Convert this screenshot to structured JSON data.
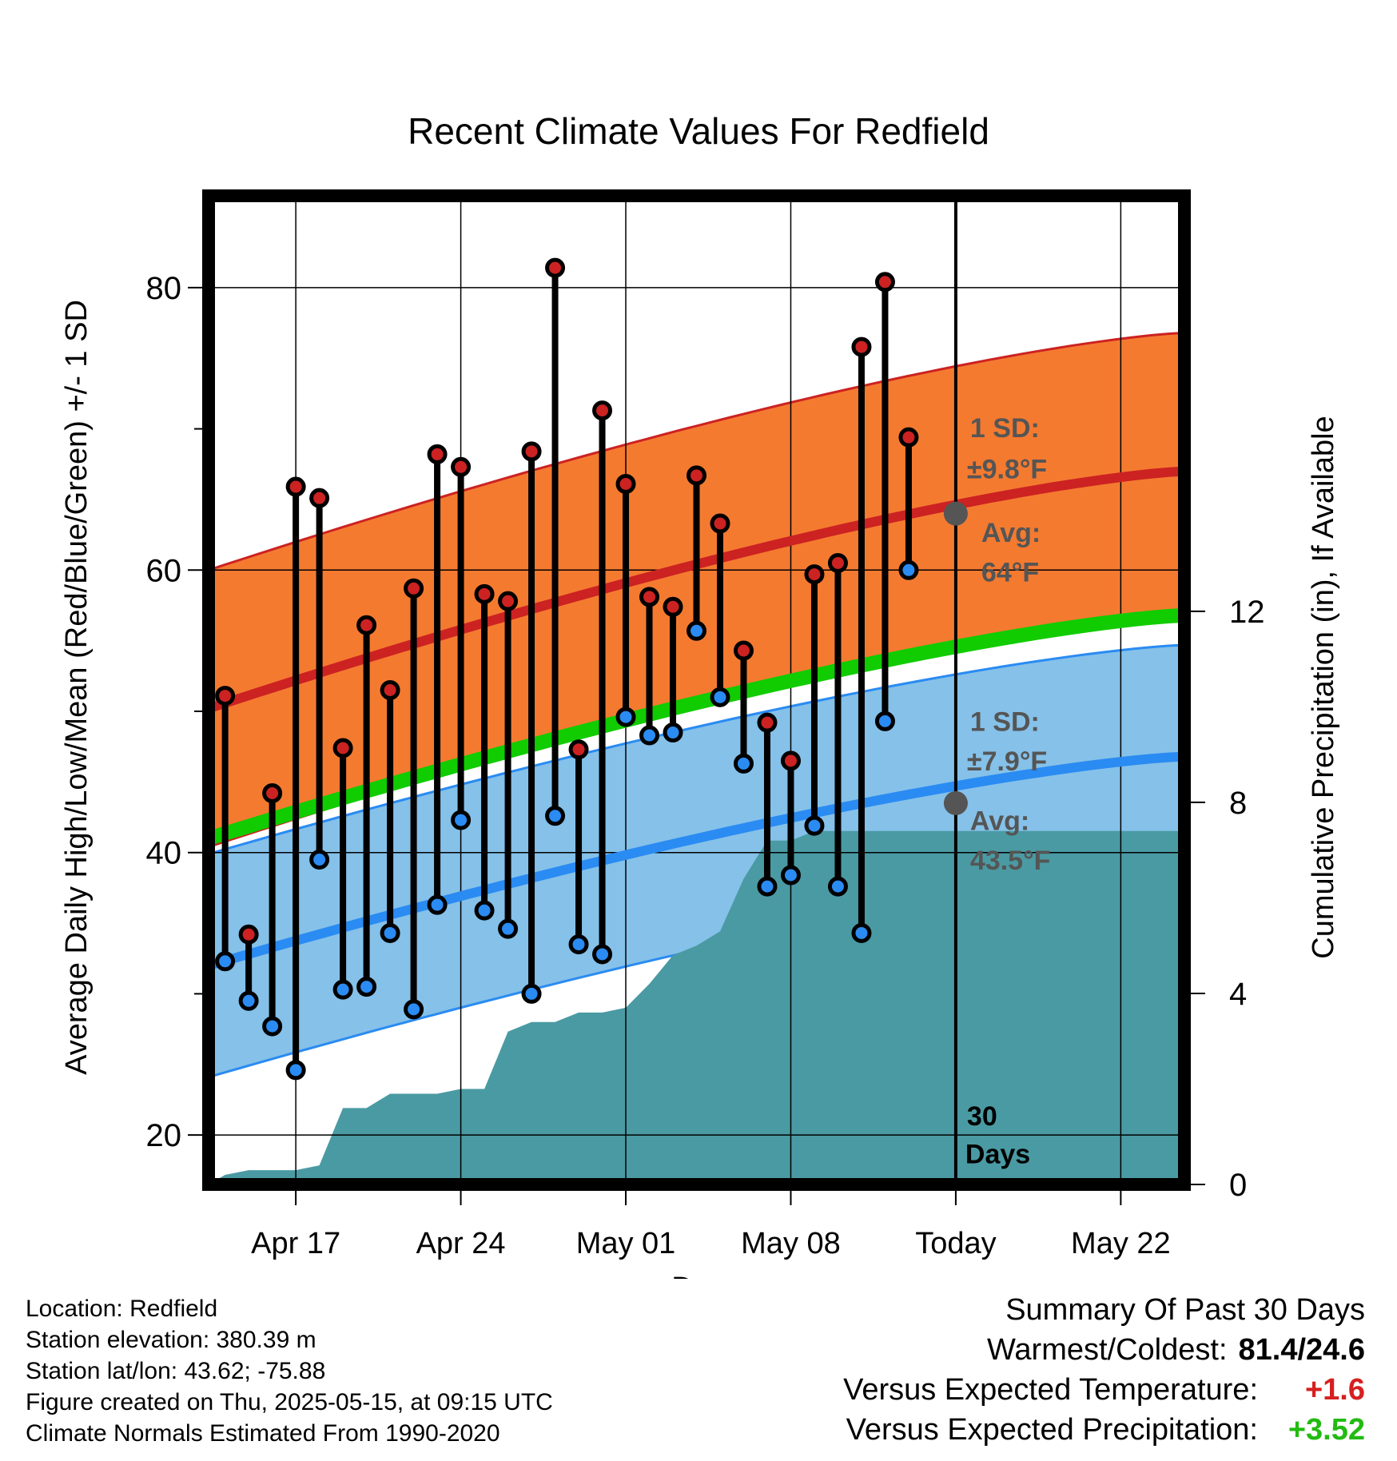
{
  "chart_data": {
    "type": "line",
    "title": "Recent Climate Values For Redfield",
    "xlabel": "Day",
    "ylabel_left": "Average Daily High/Low/Mean (Red/Blue/Green) +/- 1 SD",
    "ylabel_right": "Cumulative Precipitation (in), If Available",
    "x_tick_labels": [
      "Apr 17",
      "Apr 24",
      "May 01",
      "May 08",
      "Today",
      "May 22"
    ],
    "x_tick_days": [
      17,
      24,
      31,
      38,
      45,
      52
    ],
    "xlim_days": [
      13.3,
      54.7
    ],
    "ylim": [
      16.5,
      86.5
    ],
    "yticks": [
      20,
      40,
      60,
      80
    ],
    "y2lim": [
      0,
      20.7
    ],
    "y2ticks": [
      0,
      4,
      8,
      12
    ],
    "grid": true,
    "today_day": 45,
    "window_label": "30 Days",
    "daily": {
      "days": [
        14,
        15,
        16,
        17,
        18,
        19,
        20,
        21,
        22,
        23,
        24,
        25,
        26,
        27,
        28,
        29,
        30,
        31,
        32,
        33,
        34,
        35,
        36,
        37,
        38,
        39,
        40,
        41,
        42,
        43,
        44
      ],
      "high": [
        51.1,
        34.2,
        44.2,
        65.9,
        65.1,
        47.4,
        56.1,
        51.5,
        58.7,
        68.2,
        67.3,
        58.3,
        57.8,
        68.4,
        81.4,
        47.3,
        71.3,
        66.1,
        58.1,
        57.4,
        66.7,
        63.3,
        54.3,
        49.2,
        46.5,
        59.7,
        60.5,
        75.8,
        80.4,
        69.4,
        null
      ],
      "low": [
        32.3,
        29.5,
        27.7,
        24.6,
        39.5,
        30.3,
        30.5,
        34.3,
        28.9,
        36.3,
        42.3,
        35.9,
        34.6,
        30.0,
        42.6,
        33.5,
        32.8,
        49.6,
        48.3,
        48.5,
        55.7,
        51.0,
        46.3,
        37.6,
        38.4,
        41.9,
        37.6,
        34.3,
        49.3,
        60.0,
        null
      ]
    },
    "normals": {
      "days": [
        13.3,
        54.7
      ],
      "high_avg": [
        50.2,
        67.0
      ],
      "high_sd": 9.8,
      "low_avg": [
        32.0,
        46.8
      ],
      "low_sd": 7.9,
      "mean_avg": [
        41.0,
        56.8
      ]
    },
    "precip": {
      "days": [
        13.3,
        14,
        15,
        16,
        17,
        18,
        19,
        20,
        21,
        22,
        23,
        24,
        25,
        26,
        27,
        28,
        29,
        30,
        31,
        32,
        33,
        34,
        35,
        36,
        37,
        38,
        39,
        40,
        41,
        42,
        43,
        44,
        45,
        54.7
      ],
      "values": [
        0.0,
        0.2,
        0.3,
        0.3,
        0.3,
        0.4,
        1.6,
        1.6,
        1.9,
        1.9,
        1.9,
        2.0,
        2.0,
        3.2,
        3.4,
        3.4,
        3.6,
        3.6,
        3.7,
        4.2,
        4.8,
        5.0,
        5.3,
        6.4,
        7.2,
        7.2,
        7.4,
        7.4,
        7.4,
        7.4,
        7.4,
        7.4,
        7.4,
        7.4
      ]
    },
    "annotations": {
      "high_sd_label": "1 SD:",
      "high_sd_value": "±9.8°F",
      "high_avg_label": "Avg:",
      "high_avg_value": "64°F",
      "high_avg_point": 64,
      "low_sd_label": "1 SD:",
      "low_sd_value": "±7.9°F",
      "low_avg_label": "Avg:",
      "low_avg_value": "43.5°F",
      "low_avg_point": 43.5
    },
    "colors": {
      "high_band": "#f47a30",
      "high_line": "#cc2222",
      "low_band": "#85c1e9",
      "low_line": "#2a8bf2",
      "mean_line": "#11cc00",
      "precip": "#4a9aa3",
      "high_dot": "#cc2222",
      "low_dot": "#2a8bf2",
      "annotation_text": "#555555"
    }
  },
  "meta": {
    "location": "Location: Redfield",
    "elevation": "Station elevation: 380.39 m",
    "latlon": "Station lat/lon: 43.62; -75.88",
    "created": "Figure created on Thu, 2025-05-15, at 09:15 UTC",
    "normals": "Climate Normals Estimated From 1990-2020"
  },
  "summary": {
    "title": "Summary Of Past 30 Days",
    "warm_cold_label": "Warmest/Coldest:",
    "warm_cold_value": "81.4/24.6",
    "temp_label": "Versus Expected Temperature:",
    "temp_value": "+1.6",
    "precip_label": "Versus Expected Precipitation:",
    "precip_value": "+3.52"
  }
}
